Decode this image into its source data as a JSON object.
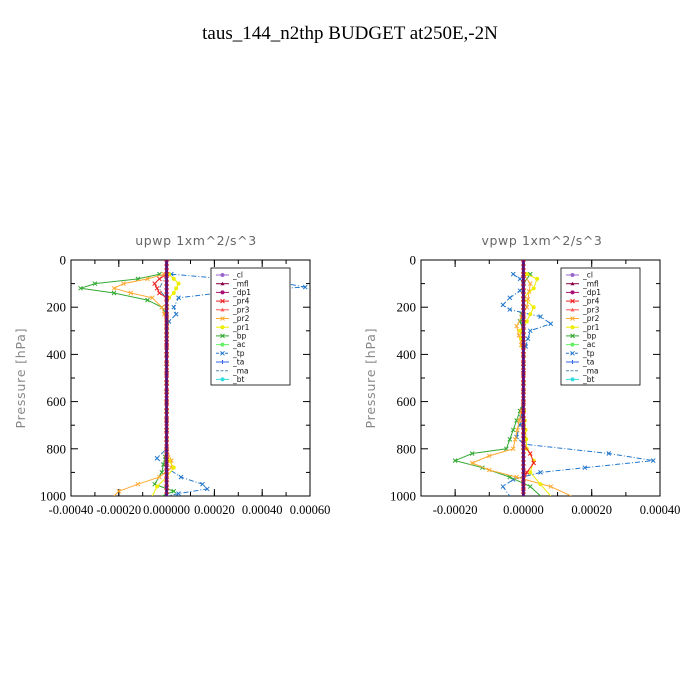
{
  "figure": {
    "title": "taus_144_n2thp  BUDGET at250E,-2N"
  },
  "legend_entries": [
    {
      "label": "_cl",
      "color": "#9966cc",
      "marker": "circle"
    },
    {
      "label": "_mfl",
      "color": "#880044",
      "marker": "triangle"
    },
    {
      "label": "_dp1",
      "color": "#aa1177",
      "marker": "circle"
    },
    {
      "label": "_pr4",
      "color": "#ee2222",
      "marker": "x"
    },
    {
      "label": "_pr3",
      "color": "#ff5555",
      "marker": "triangle"
    },
    {
      "label": "_pr2",
      "color": "#ffaa33",
      "marker": "x"
    },
    {
      "label": "_pr1",
      "color": "#eeee00",
      "marker": "circle"
    },
    {
      "label": "_bp",
      "color": "#33aa33",
      "marker": "x"
    },
    {
      "label": "_ac",
      "color": "#66ee66",
      "marker": "circle"
    },
    {
      "label": "_tp",
      "color": "#2277cc",
      "marker": "x"
    },
    {
      "label": "_ta",
      "color": "#3366ee",
      "marker": "plus"
    },
    {
      "label": "_ma",
      "color": "#5588aa",
      "marker": "none"
    },
    {
      "label": "_bt",
      "color": "#33dddd",
      "marker": "circle"
    }
  ],
  "chart_data": [
    {
      "type": "line",
      "title": "upwp   1xm^2/s^3",
      "xlabel": "",
      "ylabel": "Pressure [hPa]",
      "xlim": [
        -0.0004,
        0.0006
      ],
      "ylim": [
        1000,
        0
      ],
      "xticks": [
        -0.0004,
        -0.0002,
        0.0,
        0.0002,
        0.0004,
        0.0006
      ],
      "xtick_labels": [
        "-0.00040",
        "-0.00020",
        "0.000000",
        "0.00020",
        "0.00040",
        "0.00060"
      ],
      "yticks": [
        0,
        200,
        400,
        600,
        800,
        1000
      ],
      "ytick_labels": [
        "0",
        "200",
        "400",
        "600",
        "800",
        "1000"
      ],
      "grid": false,
      "legend_position": "upper right",
      "series": [
        {
          "name": "_tp",
          "color": "#2277cc",
          "p": [
            60,
            80,
            100,
            115,
            130,
            160,
            200,
            230,
            260,
            300,
            400,
            600,
            800,
            840,
            880,
            920,
            950,
            970,
            990,
            1000
          ],
          "x": [
            2e-05,
            0.00025,
            0.0005,
            0.00058,
            0.0003,
            5e-05,
            3e-05,
            4e-05,
            1e-05,
            0.0,
            0.0,
            0.0,
            0.0,
            -4e-05,
            0.0,
            6e-05,
            0.00015,
            0.00017,
            5e-05,
            0.0
          ]
        },
        {
          "name": "_bp",
          "color": "#33aa33",
          "p": [
            60,
            80,
            100,
            120,
            140,
            170,
            200,
            230,
            260,
            300,
            400,
            600,
            800,
            900,
            950,
            980,
            1000
          ],
          "x": [
            -3e-05,
            -0.00012,
            -0.0003,
            -0.00036,
            -0.00022,
            -8e-05,
            -2e-05,
            0.0,
            0.0,
            0.0,
            0.0,
            0.0,
            0.0,
            -2e-05,
            -5e-05,
            3e-05,
            -2e-05
          ]
        },
        {
          "name": "_pr2",
          "color": "#ffaa33",
          "p": [
            60,
            80,
            100,
            120,
            140,
            160,
            200,
            260,
            400,
            600,
            800,
            850,
            880,
            920,
            950,
            980,
            1000
          ],
          "x": [
            -1e-05,
            -8e-05,
            -0.00018,
            -0.00022,
            -0.00015,
            -6e-05,
            -2e-05,
            0.0,
            0.0,
            0.0,
            0.0,
            2e-05,
            2e-05,
            -3e-05,
            -0.00012,
            -0.0002,
            -0.00022
          ]
        },
        {
          "name": "_pr1",
          "color": "#eeee00",
          "p": [
            60,
            80,
            100,
            120,
            140,
            160,
            200,
            400,
            600,
            800,
            850,
            880,
            920,
            960,
            1000
          ],
          "x": [
            1e-05,
            3e-05,
            5e-05,
            4e-05,
            3e-05,
            1e-05,
            0.0,
            0.0,
            0.0,
            0.0,
            1e-05,
            3e-05,
            0.0,
            -4e-05,
            -6e-05
          ]
        },
        {
          "name": "_pr4",
          "color": "#ee2222",
          "p": [
            60,
            80,
            100,
            120,
            140,
            160,
            200,
            400,
            600,
            800,
            900,
            1000
          ],
          "x": [
            0.0,
            -3e-05,
            -5e-05,
            -4e-05,
            -3e-05,
            0.0,
            0.0,
            0.0,
            0.0,
            0.0,
            0.0,
            0.0
          ]
        },
        {
          "name": "_ma",
          "color": "#5588aa",
          "p": [
            60,
            80,
            100,
            120,
            140,
            160,
            200,
            400,
            600,
            800,
            900,
            1000
          ],
          "x": [
            0.0,
            -1e-05,
            -2e-05,
            -3e-05,
            -2e-05,
            0.0,
            0.0,
            0.0,
            0.0,
            0.0,
            0.0,
            0.0
          ]
        },
        {
          "name": "_mfl",
          "color": "#661188",
          "p": [
            0,
            200,
            400,
            600,
            800,
            1000
          ],
          "x": [
            0.0,
            0.0,
            0.0,
            0.0,
            0.0,
            0.0
          ]
        }
      ]
    },
    {
      "type": "line",
      "title": "vpwp   1xm^2/s^3",
      "xlabel": "",
      "ylabel": "Pressure [hPa]",
      "xlim": [
        -0.0003,
        0.0004
      ],
      "ylim": [
        1000,
        0
      ],
      "xticks": [
        -0.0002,
        0.0,
        0.0002,
        0.0004
      ],
      "xtick_labels": [
        "-0.00020",
        "0.00000",
        "0.00020",
        "0.00040"
      ],
      "yticks": [
        0,
        200,
        400,
        600,
        800,
        1000
      ],
      "ytick_labels": [
        "0",
        "200",
        "400",
        "600",
        "800",
        "1000"
      ],
      "grid": false,
      "legend_position": "upper right",
      "series": [
        {
          "name": "_tp",
          "color": "#2277cc",
          "p": [
            60,
            80,
            100,
            130,
            160,
            190,
            210,
            240,
            270,
            300,
            400,
            600,
            700,
            750,
            780,
            820,
            850,
            880,
            900,
            930,
            960,
            1000
          ],
          "x": [
            -3e-05,
            -1e-05,
            0.0,
            -1e-05,
            -4e-05,
            -6e-05,
            -4e-05,
            5e-05,
            8e-05,
            2e-05,
            0.0,
            0.0,
            -1e-05,
            -2e-05,
            0.0,
            0.00025,
            0.00038,
            0.00018,
            5e-05,
            -3e-05,
            -6e-05,
            -4e-05
          ]
        },
        {
          "name": "_bp",
          "color": "#33aa33",
          "p": [
            60,
            100,
            200,
            260,
            300,
            400,
            600,
            800,
            820,
            850,
            880,
            920,
            960,
            1000
          ],
          "x": [
            2e-05,
            0.0,
            0.0,
            -1e-05,
            0.0,
            0.0,
            0.0,
            -5e-05,
            -0.00015,
            -0.0002,
            -0.00012,
            -4e-05,
            2e-05,
            5e-05
          ]
        },
        {
          "name": "_pr2",
          "color": "#ffaa33",
          "p": [
            60,
            100,
            200,
            280,
            400,
            600,
            800,
            830,
            860,
            890,
            920,
            960,
            1000
          ],
          "x": [
            0.0,
            2e-05,
            1e-05,
            -2e-05,
            0.0,
            0.0,
            -3e-05,
            -0.0001,
            -0.00015,
            -0.0001,
            -2e-05,
            8e-05,
            0.00014
          ]
        },
        {
          "name": "_pr1",
          "color": "#eeee00",
          "p": [
            60,
            80,
            120,
            160,
            200,
            260,
            300,
            400,
            600,
            800,
            850,
            900,
            950,
            1000
          ],
          "x": [
            1e-05,
            4e-05,
            3e-05,
            0.0,
            3e-05,
            1e-05,
            -1e-05,
            0.0,
            0.0,
            1e-05,
            3e-05,
            2e-05,
            5e-05,
            8e-05
          ]
        },
        {
          "name": "_pr4",
          "color": "#ee2222",
          "p": [
            60,
            200,
            400,
            600,
            780,
            820,
            860,
            900,
            940,
            1000
          ],
          "x": [
            0.0,
            0.0,
            0.0,
            0.0,
            0.0,
            2e-05,
            3e-05,
            1e-05,
            0.0,
            0.0
          ]
        },
        {
          "name": "_mfl",
          "color": "#661188",
          "p": [
            0,
            200,
            400,
            600,
            800,
            1000
          ],
          "x": [
            0.0,
            0.0,
            0.0,
            0.0,
            0.0,
            0.0
          ]
        }
      ]
    }
  ]
}
